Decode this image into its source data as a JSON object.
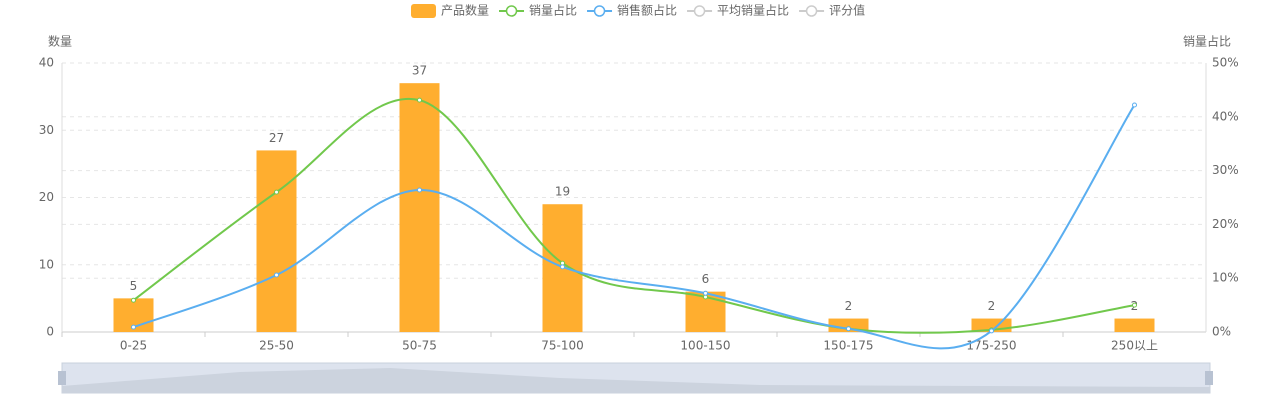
{
  "chart_data": {
    "type": "bar-line",
    "y_label": "数量",
    "y2_label": "销量占比",
    "categories": [
      "0-25",
      "25-50",
      "50-75",
      "75-100",
      "100-150",
      "150-175",
      "175-250",
      "250以上"
    ],
    "series": [
      {
        "name": "产品数量",
        "type": "bar",
        "color": "#ffae2f",
        "values": [
          5,
          27,
          37,
          19,
          6,
          2,
          2,
          2
        ]
      },
      {
        "name": "销量占比",
        "type": "line",
        "axis": "y2",
        "color": "#71c84c",
        "values": [
          5.9,
          26.0,
          43.1,
          12.8,
          6.5,
          0.6,
          0.4,
          5.0
        ]
      },
      {
        "name": "销售额占比",
        "type": "line",
        "axis": "y2",
        "color": "#5aaef0",
        "values": [
          0.9,
          10.6,
          26.4,
          12.1,
          7.2,
          0.6,
          0.2,
          42.2
        ]
      }
    ],
    "inactive_legend": [
      "平均销量占比",
      "评分值"
    ],
    "ylim": [
      0,
      40
    ],
    "yticks": [
      0,
      10,
      20,
      30,
      40
    ],
    "y2lim": [
      0,
      50
    ],
    "y2ticks": [
      {
        "value": 0,
        "label": "0%"
      },
      {
        "value": 10,
        "label": "10%"
      },
      {
        "value": 20,
        "label": "20%"
      },
      {
        "value": 30,
        "label": "30%"
      },
      {
        "value": 40,
        "label": "40%"
      },
      {
        "value": 50,
        "label": "50%"
      }
    ],
    "grid": true
  }
}
